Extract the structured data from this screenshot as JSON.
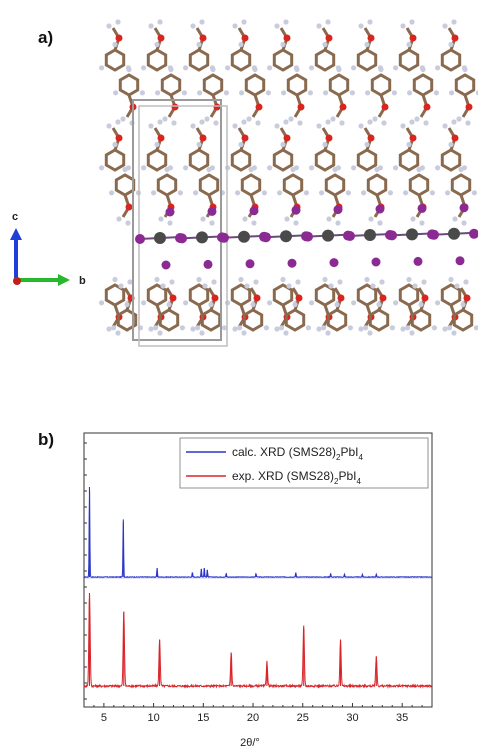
{
  "panel_labels": {
    "a": "a)",
    "b": "b)"
  },
  "crystal": {
    "axis_labels": {
      "c": "c",
      "b": "b"
    },
    "colors": {
      "carbon": "#8a6a4f",
      "hydrogen": "#c9ccdc",
      "oxygen": "#d9251d",
      "iodine": "#8b2a93",
      "lead": "#4a4a4a",
      "cell": "#9a9a9a",
      "axis_c": "#1f3fd6",
      "axis_b": "#27b82c",
      "axis_a": "#c0201a"
    }
  },
  "chart_data": {
    "type": "line",
    "xlabel": "2θ/°",
    "xlim": [
      3,
      38
    ],
    "xticks": [
      5,
      10,
      15,
      20,
      25,
      30,
      35
    ],
    "legend_placement": "top-right",
    "series": [
      {
        "name": "calc. XRD (SMS28)2PbI4",
        "legend_main": "calc. XRD (SMS28)",
        "legend_sub": "2",
        "legend_tail": "PbI",
        "legend_sub2": "4",
        "color": "#2b36c9",
        "peaks": [
          [
            3.55,
            1.0
          ],
          [
            6.95,
            0.64
          ],
          [
            10.35,
            0.1
          ],
          [
            13.9,
            0.05
          ],
          [
            14.8,
            0.09
          ],
          [
            15.1,
            0.1
          ],
          [
            15.4,
            0.08
          ],
          [
            17.3,
            0.04
          ],
          [
            20.3,
            0.04
          ],
          [
            24.3,
            0.05
          ],
          [
            27.8,
            0.04
          ],
          [
            29.2,
            0.03
          ],
          [
            31.0,
            0.03
          ],
          [
            32.4,
            0.03
          ]
        ]
      },
      {
        "name": "exp. XRD (SMS28)2PbI4",
        "legend_main": "exp. XRD (SMS28)",
        "legend_sub": "2",
        "legend_tail": "PbI",
        "legend_sub2": "4",
        "color": "#d9252a",
        "peaks": [
          [
            3.55,
            1.0
          ],
          [
            7.0,
            0.8
          ],
          [
            10.6,
            0.5
          ],
          [
            17.8,
            0.36
          ],
          [
            21.4,
            0.27
          ],
          [
            25.1,
            0.65
          ],
          [
            28.8,
            0.5
          ],
          [
            32.4,
            0.32
          ]
        ]
      }
    ]
  }
}
